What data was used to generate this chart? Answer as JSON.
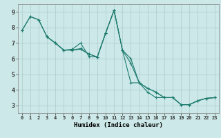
{
  "xlabel": "Humidex (Indice chaleur)",
  "bg_color": "#cce8e8",
  "grid_color": "#aacccc",
  "line_color": "#1e7b6e",
  "xlim": [
    -0.5,
    23.5
  ],
  "ylim": [
    2.5,
    9.5
  ],
  "xticks": [
    0,
    1,
    2,
    3,
    4,
    5,
    6,
    7,
    8,
    9,
    10,
    11,
    12,
    13,
    14,
    15,
    16,
    17,
    18,
    19,
    20,
    21,
    22,
    23
  ],
  "yticks": [
    3,
    4,
    5,
    6,
    7,
    8,
    9
  ],
  "lines": [
    [
      7.8,
      8.7,
      8.5,
      7.4,
      null,
      null,
      null,
      null,
      null,
      null,
      null,
      null,
      null,
      null,
      null,
      null,
      null,
      null,
      null,
      null,
      null,
      null,
      null,
      null
    ],
    [
      7.8,
      8.7,
      8.5,
      7.4,
      7.0,
      6.55,
      6.55,
      6.6,
      6.3,
      6.1,
      7.65,
      9.1,
      6.55,
      4.45,
      4.45,
      3.85,
      3.5,
      3.5,
      3.5,
      3.05,
      3.05,
      3.3,
      3.45,
      3.5
    ],
    [
      null,
      null,
      null,
      7.4,
      7.0,
      6.55,
      6.55,
      6.65,
      6.3,
      6.1,
      7.65,
      9.1,
      6.55,
      6.0,
      4.45,
      4.1,
      3.85,
      3.5,
      3.5,
      3.05,
      3.05,
      3.3,
      3.45,
      3.5
    ],
    [
      null,
      null,
      null,
      7.4,
      7.0,
      6.55,
      6.6,
      7.0,
      6.15,
      6.1,
      7.65,
      9.1,
      6.55,
      5.7,
      4.45,
      4.1,
      3.85,
      3.5,
      3.5,
      3.05,
      3.05,
      3.3,
      3.45,
      3.5
    ]
  ],
  "xlabel_fontsize": 6.5,
  "xtick_fontsize": 5.0,
  "ytick_fontsize": 6.0
}
